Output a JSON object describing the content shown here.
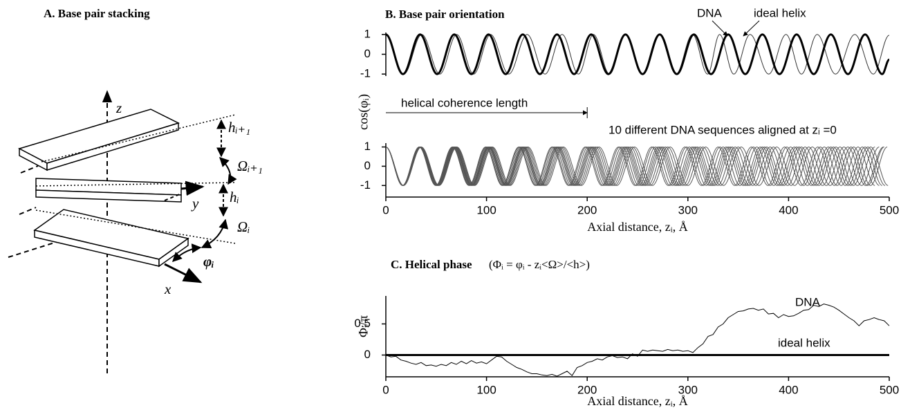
{
  "diagram": {
    "title": "A. Base pair stacking",
    "labels": {
      "z": "z",
      "h_next": "hᵢ₊₁",
      "omega_next": "Ωᵢ₊₁",
      "y": "y",
      "h": "hᵢ",
      "omega": "Ωᵢ",
      "phi": "φᵢ",
      "x": "x"
    }
  },
  "chart_data": [
    {
      "type": "line",
      "title": "B. Base pair orientation",
      "ylabel": "cos(φᵢ)",
      "xlim": [
        0,
        500
      ],
      "ylim": [
        -1.1,
        1.1
      ],
      "yticks": [
        -1,
        0,
        1
      ],
      "series": [
        {
          "name": "DNA",
          "color": "#333333",
          "linewidth": 1,
          "x": [
            0,
            17.85,
            35.7,
            53.6,
            70.4,
            87.2,
            104,
            122.1,
            140.3,
            158.1,
            175.1,
            191.3,
            206.2,
            222.2,
            238,
            254.2,
            271.2,
            288.2,
            304.6,
            319.6,
            331.5,
            345.6,
            361.8,
            380.3,
            397.5,
            412.8,
            428.4,
            446.6,
            465.8,
            484.2,
            500
          ],
          "values": [
            1,
            -1,
            1,
            -1,
            1,
            -1,
            1,
            -1,
            1,
            -1,
            1,
            -1,
            1,
            -1,
            1,
            -1,
            1,
            -1,
            1,
            -1,
            1,
            -1,
            1,
            -1,
            1,
            -1,
            1,
            -1,
            1,
            -1,
            0.96
          ]
        },
        {
          "name": "ideal helix",
          "color": "#000000",
          "linewidth": 3,
          "x": [
            0,
            17,
            34,
            51,
            68,
            85,
            102,
            119,
            136,
            153,
            170,
            187,
            204,
            221,
            238,
            255,
            272,
            289,
            306,
            323,
            340,
            357,
            374,
            391,
            408,
            425,
            442,
            459,
            476,
            493,
            500
          ],
          "values": [
            1,
            -1,
            1,
            -1,
            1,
            -1,
            1,
            -1,
            1,
            -1,
            1,
            -1,
            1,
            -1,
            1,
            -1,
            1,
            -1,
            1,
            -1,
            1,
            -1,
            1,
            -1,
            1,
            -1,
            1,
            -1,
            1,
            -1,
            -0.27
          ]
        }
      ]
    },
    {
      "type": "line",
      "xlabel": "Axial distance, zᵢ, Å",
      "xlim": [
        0,
        500
      ],
      "ylim": [
        -1.6,
        1.2
      ],
      "xticks": [
        0,
        100,
        200,
        300,
        400,
        500
      ],
      "yticks": [
        -1,
        0,
        1
      ],
      "color": "#555555",
      "annotations": [
        {
          "text": "helical coherence length",
          "x": [
            0,
            200
          ]
        },
        {
          "text": "10 different DNA sequences aligned at zᵢ =0"
        }
      ],
      "series": [
        {
          "x": [
            0,
            16.5,
            33,
            49.5,
            66,
            82.5,
            99,
            115.5,
            132,
            148.5,
            165,
            181.5,
            198,
            214.5,
            231,
            247.5,
            264,
            280.5,
            297,
            313.5,
            330,
            346.5,
            363,
            379.5,
            396,
            412.5,
            429,
            445.5,
            462,
            478.5,
            495
          ],
          "values": [
            1,
            -1,
            1,
            -1,
            1,
            -1,
            1,
            -1,
            1,
            -1,
            1,
            -1,
            1,
            -1,
            1,
            -1,
            1,
            -1,
            1,
            -1,
            1,
            -1,
            1,
            -1,
            1,
            -1,
            1,
            -1,
            1,
            -1,
            1
          ]
        },
        {
          "x": [
            0,
            16.6,
            33.2,
            49.8,
            66.4,
            83,
            99.6,
            116.2,
            132.8,
            149.4,
            166,
            182.6,
            199.2,
            215.8,
            232.4,
            249,
            265.6,
            282.2,
            298.8,
            315.4,
            332,
            348.6,
            365.2,
            381.8,
            398.4,
            415,
            431.6,
            448.2,
            464.8,
            481.4,
            498
          ],
          "values": [
            1,
            -1,
            1,
            -1,
            1,
            -1,
            1,
            -1,
            1,
            -1,
            1,
            -1,
            1,
            -1,
            1,
            -1,
            1,
            -1,
            1,
            -1,
            1,
            -1,
            1,
            -1,
            1,
            -1,
            1,
            -1,
            1,
            -1,
            1
          ]
        },
        {
          "x": [
            0,
            16.75,
            33.5,
            50.25,
            67,
            83.75,
            100.5,
            117.25,
            134,
            150.75,
            167.5,
            184.25,
            201,
            217.75,
            234.5,
            251.25,
            268,
            284.75,
            301.5,
            318.25,
            335,
            351.75,
            368.5,
            385.25,
            402,
            418.75,
            435.5,
            452.25,
            469,
            485.75
          ],
          "values": [
            1,
            -1,
            1,
            -1,
            1,
            -1,
            1,
            -1,
            1,
            -1,
            1,
            -1,
            1,
            -1,
            1,
            -1,
            1,
            -1,
            1,
            -1,
            1,
            -1,
            1,
            -1,
            1,
            -1,
            1,
            -1,
            1,
            -1
          ]
        },
        {
          "x": [
            0,
            16.9,
            33.8,
            50.7,
            67.6,
            84.5,
            101.4,
            118.3,
            135.2,
            152.1,
            169,
            185.9,
            202.8,
            219.7,
            236.6,
            253.5,
            270.4,
            287.3,
            304.2,
            321.1,
            338,
            354.9,
            371.8,
            388.7,
            405.6,
            422.5,
            439.4,
            456.3,
            473.2,
            490.1
          ],
          "values": [
            1,
            -1,
            1,
            -1,
            1,
            -1,
            1,
            -1,
            1,
            -1,
            1,
            -1,
            1,
            -1,
            1,
            -1,
            1,
            -1,
            1,
            -1,
            1,
            -1,
            1,
            -1,
            1,
            -1,
            1,
            -1,
            1,
            -1
          ]
        },
        {
          "x": [
            0,
            17,
            34,
            51,
            68,
            85,
            102,
            119,
            136,
            153,
            170,
            187,
            204,
            221,
            238,
            255,
            272,
            289,
            306,
            323,
            340,
            357,
            374,
            391,
            408,
            425,
            442,
            459,
            476,
            493
          ],
          "values": [
            1,
            -1,
            1,
            -1,
            1,
            -1,
            1,
            -1,
            1,
            -1,
            1,
            -1,
            1,
            -1,
            1,
            -1,
            1,
            -1,
            1,
            -1,
            1,
            -1,
            1,
            -1,
            1,
            -1,
            1,
            -1,
            1,
            -1
          ]
        },
        {
          "x": [
            0,
            17.1,
            34.2,
            51.3,
            68.4,
            85.5,
            102.6,
            119.7,
            136.8,
            153.9,
            171,
            188.1,
            205.2,
            222.3,
            239.4,
            256.5,
            273.6,
            290.7,
            307.8,
            324.9,
            342,
            359.1,
            376.2,
            393.3,
            410.4,
            427.5,
            444.6,
            461.7,
            478.8,
            495.9
          ],
          "values": [
            1,
            -1,
            1,
            -1,
            1,
            -1,
            1,
            -1,
            1,
            -1,
            1,
            -1,
            1,
            -1,
            1,
            -1,
            1,
            -1,
            1,
            -1,
            1,
            -1,
            1,
            -1,
            1,
            -1,
            1,
            -1,
            1,
            -1
          ]
        },
        {
          "x": [
            0,
            17.2,
            34.4,
            51.6,
            68.8,
            86,
            103.2,
            120.4,
            137.6,
            154.8,
            172,
            189.2,
            206.4,
            223.6,
            240.8,
            258,
            275.2,
            292.4,
            309.6,
            326.8,
            344,
            361.2,
            378.4,
            395.6,
            412.8,
            430,
            447.2,
            464.4,
            481.6,
            498.8
          ],
          "values": [
            1,
            -1,
            1,
            -1,
            1,
            -1,
            1,
            -1,
            1,
            -1,
            1,
            -1,
            1,
            -1,
            1,
            -1,
            1,
            -1,
            1,
            -1,
            1,
            -1,
            1,
            -1,
            1,
            -1,
            1,
            -1,
            1,
            -1
          ]
        },
        {
          "x": [
            0,
            17.35,
            34.7,
            52.05,
            69.4,
            86.75,
            104.1,
            121.45,
            138.8,
            156.15,
            173.5,
            190.85,
            208.2,
            225.55,
            242.9,
            260.25,
            277.6,
            294.95,
            312.3,
            329.65,
            347,
            364.35,
            381.7,
            399.05,
            416.4,
            433.75,
            451.1,
            468.45,
            485.8
          ],
          "values": [
            1,
            -1,
            1,
            -1,
            1,
            -1,
            1,
            -1,
            1,
            -1,
            1,
            -1,
            1,
            -1,
            1,
            -1,
            1,
            -1,
            1,
            -1,
            1,
            -1,
            1,
            -1,
            1,
            -1,
            1,
            -1,
            1
          ]
        },
        {
          "x": [
            0,
            17.5,
            35,
            52.5,
            70,
            87.5,
            105,
            122.5,
            140,
            157.5,
            175,
            192.5,
            210,
            227.5,
            245,
            262.5,
            280,
            297.5,
            315,
            332.5,
            350,
            367.5,
            385,
            402.5,
            420,
            437.5,
            455,
            472.5,
            490
          ],
          "values": [
            1,
            -1,
            1,
            -1,
            1,
            -1,
            1,
            -1,
            1,
            -1,
            1,
            -1,
            1,
            -1,
            1,
            -1,
            1,
            -1,
            1,
            -1,
            1,
            -1,
            1,
            -1,
            1,
            -1,
            1,
            -1,
            1
          ]
        },
        {
          "x": [
            0,
            17.65,
            35.3,
            52.95,
            70.6,
            88.25,
            105.9,
            123.55,
            141.2,
            158.85,
            176.5,
            194.15,
            211.8,
            229.45,
            247.1,
            264.75,
            282.4,
            300.05,
            317.7,
            335.35,
            353,
            370.65,
            388.3,
            405.95,
            423.6,
            441.25,
            458.9,
            476.55,
            494.2
          ],
          "values": [
            1,
            -1,
            1,
            -1,
            1,
            -1,
            1,
            -1,
            1,
            -1,
            1,
            -1,
            1,
            -1,
            1,
            -1,
            1,
            -1,
            1,
            -1,
            1,
            -1,
            1,
            -1,
            1,
            -1,
            1,
            -1,
            1
          ]
        }
      ]
    },
    {
      "type": "line",
      "title": "C. Helical phase",
      "subtitle": "(Φᵢ = φᵢ - zᵢ<Ω>/<h>)",
      "xlabel": "Axial distance, zᵢ, Å",
      "ylabel": "Φᵢ/π",
      "xlim": [
        0,
        500
      ],
      "ylim": [
        -0.35,
        0.95
      ],
      "xticks": [
        0,
        100,
        200,
        300,
        400,
        500
      ],
      "yticks": [
        0,
        0.5
      ],
      "series": [
        {
          "name": "DNA",
          "color": "#000000",
          "linewidth": 1,
          "x": [
            0,
            5,
            10,
            15,
            20,
            25,
            30,
            35,
            40,
            45,
            50,
            55,
            60,
            65,
            70,
            75,
            80,
            85,
            90,
            95,
            100,
            105,
            110,
            115,
            120,
            125,
            130,
            135,
            140,
            145,
            150,
            155,
            160,
            165,
            170,
            175,
            180,
            185,
            190,
            195,
            200,
            205,
            210,
            215,
            220,
            225,
            230,
            235,
            240,
            245,
            250,
            255,
            260,
            265,
            270,
            275,
            280,
            285,
            290,
            295,
            300,
            305,
            310,
            315,
            320,
            325,
            330,
            335,
            340,
            345,
            350,
            355,
            360,
            365,
            370,
            375,
            380,
            385,
            390,
            395,
            400,
            405,
            410,
            415,
            420,
            425,
            430,
            435,
            440,
            445,
            450,
            455,
            460,
            465,
            470,
            475,
            480,
            485,
            490,
            495,
            500
          ],
          "values": [
            0,
            -0.03,
            -0.02,
            -0.08,
            -0.1,
            -0.13,
            -0.15,
            -0.12,
            -0.17,
            -0.16,
            -0.18,
            -0.15,
            -0.17,
            -0.12,
            -0.15,
            -0.1,
            -0.14,
            -0.09,
            -0.13,
            -0.11,
            -0.14,
            -0.08,
            -0.02,
            -0.03,
            -0.1,
            -0.15,
            -0.2,
            -0.23,
            -0.27,
            -0.3,
            -0.3,
            -0.32,
            -0.33,
            -0.31,
            -0.34,
            -0.3,
            -0.26,
            -0.33,
            -0.2,
            -0.17,
            -0.12,
            -0.1,
            -0.06,
            -0.08,
            -0.03,
            -0.01,
            -0.04,
            -0.03,
            -0.06,
            0.02,
            -0.02,
            0.08,
            0.06,
            0.08,
            0.07,
            0.06,
            0.09,
            0.07,
            0.08,
            0.06,
            0.07,
            0.04,
            0.12,
            0.18,
            0.3,
            0.33,
            0.45,
            0.5,
            0.6,
            0.65,
            0.7,
            0.71,
            0.74,
            0.75,
            0.72,
            0.74,
            0.66,
            0.67,
            0.6,
            0.65,
            0.62,
            0.63,
            0.67,
            0.72,
            0.73,
            0.8,
            0.78,
            0.82,
            0.8,
            0.77,
            0.72,
            0.66,
            0.6,
            0.55,
            0.47,
            0.55,
            0.57,
            0.6,
            0.57,
            0.55,
            0.47
          ]
        },
        {
          "name": "ideal helix",
          "color": "#000000",
          "linewidth": 3,
          "x": [
            0,
            500
          ],
          "values": [
            0,
            0
          ]
        }
      ]
    }
  ]
}
